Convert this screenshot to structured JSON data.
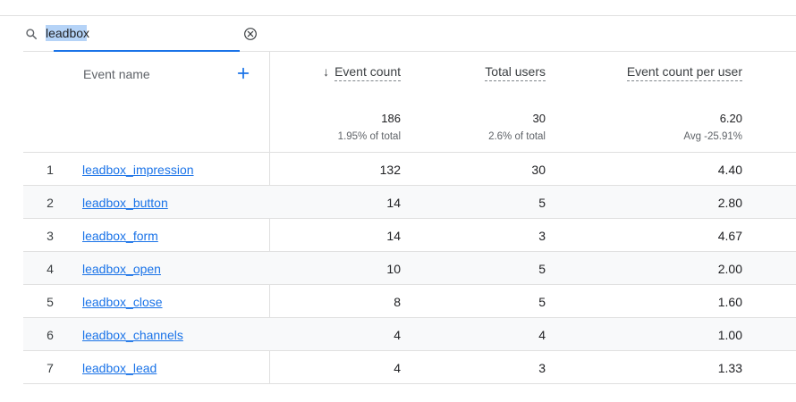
{
  "search": {
    "value": "leadbox"
  },
  "table": {
    "columns": {
      "event_name": "Event name",
      "event_count": "Event count",
      "total_users": "Total users",
      "event_count_per_user": "Event count per user"
    },
    "sort": {
      "column": "event_count",
      "direction": "descending"
    },
    "totals": {
      "event_count": "186",
      "event_count_sub": "1.95% of total",
      "total_users": "30",
      "total_users_sub": "2.6% of total",
      "per_user": "6.20",
      "per_user_sub": "Avg -25.91%"
    },
    "rows": [
      {
        "idx": "1",
        "name": "leadbox_impression",
        "count": "132",
        "users": "30",
        "per_user": "4.40"
      },
      {
        "idx": "2",
        "name": "leadbox_button",
        "count": "14",
        "users": "5",
        "per_user": "2.80"
      },
      {
        "idx": "3",
        "name": "leadbox_form",
        "count": "14",
        "users": "3",
        "per_user": "4.67"
      },
      {
        "idx": "4",
        "name": "leadbox_open",
        "count": "10",
        "users": "5",
        "per_user": "2.00"
      },
      {
        "idx": "5",
        "name": "leadbox_close",
        "count": "8",
        "users": "5",
        "per_user": "1.60"
      },
      {
        "idx": "6",
        "name": "leadbox_channels",
        "count": "4",
        "users": "4",
        "per_user": "1.00"
      },
      {
        "idx": "7",
        "name": "leadbox_lead",
        "count": "4",
        "users": "3",
        "per_user": "1.33"
      }
    ]
  },
  "colors": {
    "accent": "#1a73e8",
    "divider": "#e0e0e0",
    "muted": "#5f6368"
  },
  "icons": {
    "search": "search-icon",
    "clear": "clear-circle-icon",
    "add": "plus-icon",
    "sort": "arrow-down-icon"
  }
}
